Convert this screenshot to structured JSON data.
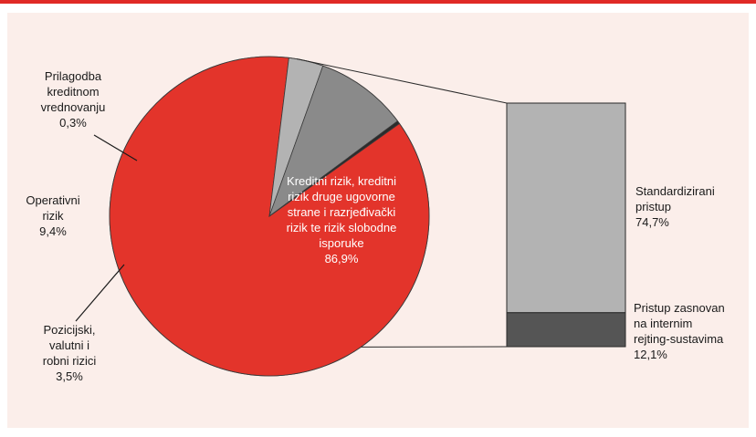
{
  "chart_data": [
    {
      "type": "pie",
      "slices": [
        {
          "label_lines": [
            "Kreditni rizik, kreditni",
            "rizik druge ugovorne",
            "strane i razrjeđivački",
            "rizik te rizik slobodne",
            "isporuke"
          ],
          "value_label": "86,9%",
          "value": 86.9,
          "color": "#e3342b"
        },
        {
          "label_lines": [
            "Pozicijski,",
            "valutni i",
            "robni rizici"
          ],
          "value_label": "3,5%",
          "value": 3.5,
          "color": "#b3b3b3"
        },
        {
          "label_lines": [
            "Operativni",
            "rizik"
          ],
          "value_label": "9,4%",
          "value": 9.4,
          "color": "#8a8a8a"
        },
        {
          "label_lines": [
            "Prilagodba",
            "kreditnom",
            "vrednovanju"
          ],
          "value_label": "0,3%",
          "value": 0.3,
          "color": "#2b2b2b"
        }
      ]
    },
    {
      "type": "bar",
      "stacked": true,
      "segments": [
        {
          "label_lines": [
            "Standardizirani",
            "pristup"
          ],
          "value_label": "74,7%",
          "value": 74.7,
          "color": "#b3b3b3"
        },
        {
          "label_lines": [
            "Pristup zasnovan",
            "na internim",
            "rejting-sustavima"
          ],
          "value_label": "12,1%",
          "value": 12.1,
          "color": "#555555"
        }
      ]
    }
  ]
}
